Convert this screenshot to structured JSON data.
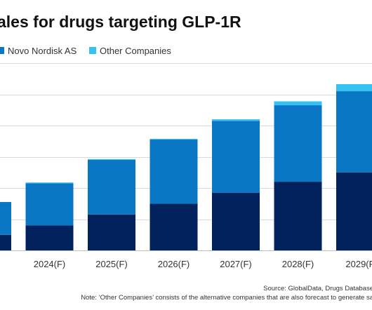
{
  "colors": {
    "series_0": "#02225e",
    "series_1": "#0a77c4",
    "series_2": "#33c2f2",
    "gridline": "#d9d9d9",
    "axis": "#bfbfbf"
  },
  "chart_data": {
    "type": "bar",
    "stacked": true,
    "title": "ales for drugs targeting GLP-1R",
    "categories": [
      "",
      "2024(F)",
      "2025(F)",
      "2026(F)",
      "2027(F)",
      "2028(F)",
      "2029(F"
    ],
    "series": [
      {
        "name": "",
        "values": [
          1.0,
          1.6,
          2.3,
          3.0,
          3.7,
          4.4,
          5.0
        ]
      },
      {
        "name": "Novo Nordisk AS",
        "values": [
          2.1,
          2.7,
          3.5,
          4.1,
          4.6,
          4.9,
          5.2
        ]
      },
      {
        "name": "Other Companies",
        "values": [
          0.0,
          0.05,
          0.05,
          0.05,
          0.1,
          0.25,
          0.45
        ]
      }
    ],
    "ylim": [
      0,
      12
    ],
    "grid": true,
    "legend_position": "top-left",
    "xlabel": "",
    "ylabel": ""
  },
  "footnotes": {
    "source": "Source: GlobalData, Drugs Database",
    "note": "Note: ‘Other Companies’ consists of the  alternative companies that are also forecast to generate sa"
  }
}
